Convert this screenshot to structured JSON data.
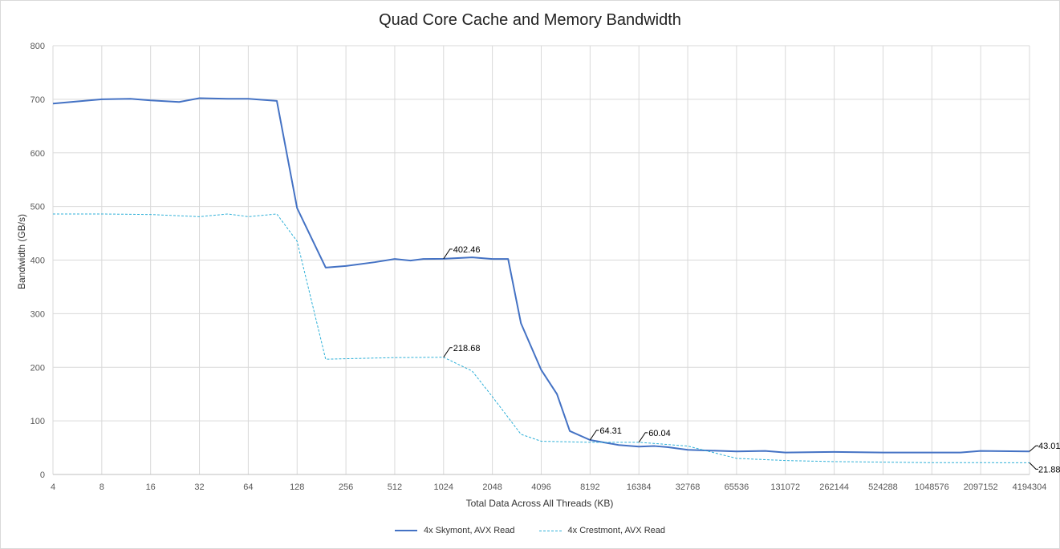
{
  "chart_data": {
    "type": "line",
    "title": "Quad Core Cache and Memory Bandwidth",
    "xlabel": "Total Data Across All Threads (KB)",
    "ylabel": "Bandwidth (GB/s)",
    "x_scale": "log2",
    "x_ticks": [
      "4",
      "8",
      "16",
      "32",
      "64",
      "128",
      "256",
      "512",
      "1024",
      "2048",
      "4096",
      "8192",
      "16384",
      "32768",
      "65536",
      "131072",
      "262144",
      "524288",
      "1048576",
      "2097152",
      "4194304"
    ],
    "y_ticks": [
      "0",
      "100",
      "200",
      "300",
      "400",
      "500",
      "600",
      "700",
      "800"
    ],
    "ylim": [
      0,
      800
    ],
    "grid": true,
    "legend_position": "bottom",
    "series": [
      {
        "name": "4x Skymont, AVX Read",
        "color": "#4472c4",
        "style": "solid",
        "points": [
          [
            4,
            692
          ],
          [
            8,
            700
          ],
          [
            12,
            701
          ],
          [
            16,
            698
          ],
          [
            24,
            695
          ],
          [
            32,
            702
          ],
          [
            48,
            701
          ],
          [
            64,
            701
          ],
          [
            96,
            697
          ],
          [
            128,
            497
          ],
          [
            192,
            386
          ],
          [
            256,
            389
          ],
          [
            384,
            396
          ],
          [
            512,
            402
          ],
          [
            640,
            399
          ],
          [
            768,
            402
          ],
          [
            1024,
            402.46
          ],
          [
            1536,
            405
          ],
          [
            2048,
            402
          ],
          [
            2560,
            402
          ],
          [
            3072,
            282
          ],
          [
            4096,
            195
          ],
          [
            5120,
            150
          ],
          [
            6144,
            81
          ],
          [
            8192,
            64.31
          ],
          [
            12288,
            55
          ],
          [
            16384,
            52
          ],
          [
            20480,
            53
          ],
          [
            24576,
            51
          ],
          [
            32768,
            46
          ],
          [
            65536,
            43
          ],
          [
            98304,
            44
          ],
          [
            131072,
            41
          ],
          [
            262144,
            42
          ],
          [
            524288,
            41
          ],
          [
            1048576,
            41
          ],
          [
            1572864,
            41
          ],
          [
            2097152,
            44
          ],
          [
            4194304,
            43.01
          ]
        ]
      },
      {
        "name": "4x Crestmont, AVX Read",
        "color": "#2fb0d8",
        "style": "dashed",
        "points": [
          [
            4,
            486
          ],
          [
            8,
            486
          ],
          [
            16,
            485
          ],
          [
            32,
            481
          ],
          [
            48,
            486
          ],
          [
            64,
            481
          ],
          [
            96,
            486
          ],
          [
            128,
            435
          ],
          [
            192,
            215
          ],
          [
            256,
            216
          ],
          [
            512,
            218
          ],
          [
            1024,
            218.68
          ],
          [
            1536,
            193
          ],
          [
            2048,
            145
          ],
          [
            3072,
            75
          ],
          [
            4096,
            62
          ],
          [
            8192,
            60
          ],
          [
            16384,
            60.04
          ],
          [
            32768,
            53
          ],
          [
            65536,
            30
          ],
          [
            131072,
            26
          ],
          [
            262144,
            24
          ],
          [
            524288,
            23
          ],
          [
            1048576,
            22
          ],
          [
            2097152,
            22
          ],
          [
            4194304,
            21.88
          ]
        ]
      }
    ],
    "data_labels": [
      {
        "x": 1024,
        "y": 402.46,
        "text": "402.46",
        "series": 0
      },
      {
        "x": 1024,
        "y": 218.68,
        "text": "218.68",
        "series": 1
      },
      {
        "x": 8192,
        "y": 64.31,
        "text": "64.31",
        "series": 0
      },
      {
        "x": 16384,
        "y": 60.04,
        "text": "60.04",
        "series": 1
      },
      {
        "x": 4194304,
        "y": 43.01,
        "text": "43.01",
        "series": 0
      },
      {
        "x": 4194304,
        "y": 21.88,
        "text": "21.88",
        "series": 1
      }
    ]
  }
}
